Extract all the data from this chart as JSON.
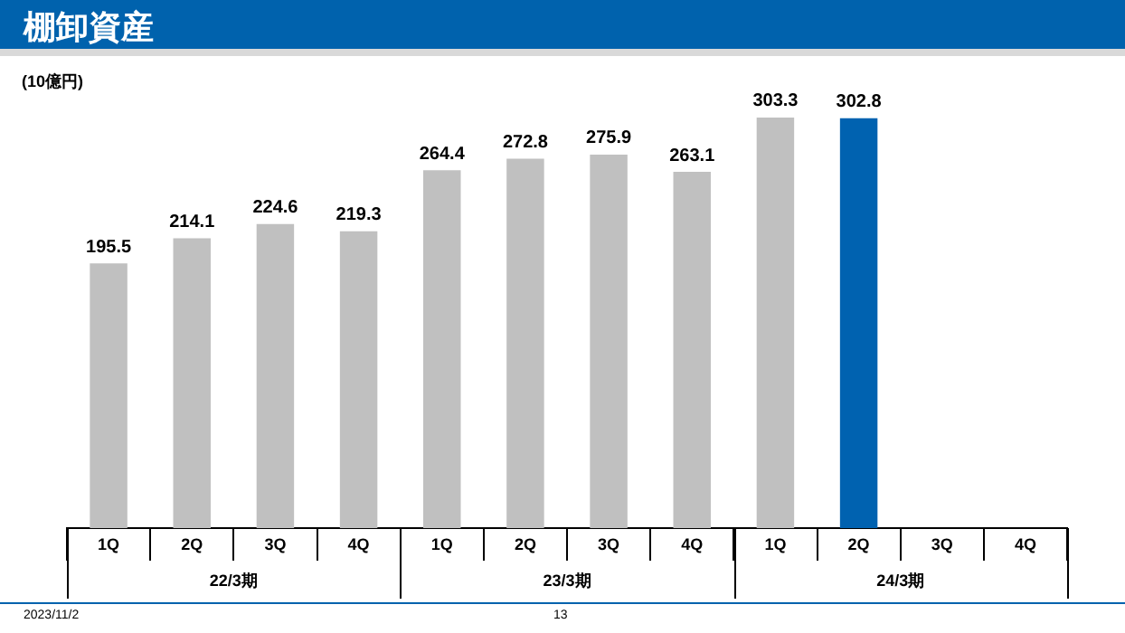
{
  "chart_data": {
    "type": "bar",
    "title": "棚卸資産",
    "ylabel": "(10億円)",
    "categories": [
      "1Q",
      "2Q",
      "3Q",
      "4Q",
      "1Q",
      "2Q",
      "3Q",
      "4Q",
      "1Q",
      "2Q",
      "3Q",
      "4Q"
    ],
    "values": [
      195.5,
      214.1,
      224.6,
      219.3,
      264.4,
      272.8,
      275.9,
      263.1,
      303.3,
      302.8,
      null,
      null
    ],
    "colors": [
      "#c0c0c0",
      "#c0c0c0",
      "#c0c0c0",
      "#c0c0c0",
      "#c0c0c0",
      "#c0c0c0",
      "#c0c0c0",
      "#c0c0c0",
      "#c0c0c0",
      "#0062b0",
      "#c0c0c0",
      "#c0c0c0"
    ],
    "data_labels": true,
    "legend": false,
    "grid": false,
    "annotations": [
      "22/3期",
      "23/3期",
      "24/3期",
      "2023/11/2",
      "13"
    ]
  }
}
